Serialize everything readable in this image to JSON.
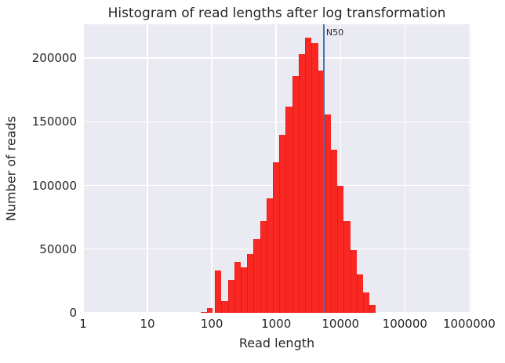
{
  "figure": {
    "title": "Histogram of read lengths after log transformation"
  },
  "chart_data": {
    "type": "bar",
    "variant": "histogram",
    "title": "Histogram of read lengths after log transformation",
    "xlabel": "Read length",
    "ylabel": "Number of reads",
    "x_scale": "log10",
    "xlim_log10": [
      0,
      6.02
    ],
    "ylim": [
      0,
      226500
    ],
    "grid": true,
    "legend": "none",
    "x_ticks": [
      {
        "log10": 0,
        "label": "1"
      },
      {
        "log10": 1,
        "label": "10"
      },
      {
        "log10": 2,
        "label": "100"
      },
      {
        "log10": 3,
        "label": "1000"
      },
      {
        "log10": 4,
        "label": "10000"
      },
      {
        "log10": 5,
        "label": "100000"
      },
      {
        "log10": 6,
        "label": "1000000"
      }
    ],
    "y_ticks": [
      {
        "value": 0,
        "label": "0"
      },
      {
        "value": 50000,
        "label": "50000"
      },
      {
        "value": 100000,
        "label": "100000"
      },
      {
        "value": 150000,
        "label": "150000"
      },
      {
        "value": 200000,
        "label": "200000"
      }
    ],
    "bars_format": "[log10_left_edge, log10_right_edge, number_of_reads]",
    "bars": [
      [
        1.83,
        1.93,
        800
      ],
      [
        1.93,
        2.01,
        4000
      ],
      [
        2.05,
        2.15,
        33000
      ],
      [
        2.15,
        2.25,
        9000
      ],
      [
        2.25,
        2.35,
        26000
      ],
      [
        2.35,
        2.45,
        40000
      ],
      [
        2.45,
        2.55,
        36000
      ],
      [
        2.55,
        2.65,
        46000
      ],
      [
        2.65,
        2.75,
        58000
      ],
      [
        2.75,
        2.85,
        72000
      ],
      [
        2.85,
        2.95,
        90000
      ],
      [
        2.95,
        3.05,
        118000
      ],
      [
        3.05,
        3.15,
        140000
      ],
      [
        3.15,
        3.25,
        162000
      ],
      [
        3.25,
        3.35,
        186000
      ],
      [
        3.35,
        3.45,
        203000
      ],
      [
        3.45,
        3.55,
        216000
      ],
      [
        3.55,
        3.65,
        212000
      ],
      [
        3.65,
        3.75,
        190000
      ],
      [
        3.75,
        3.85,
        156000
      ],
      [
        3.85,
        3.95,
        128000
      ],
      [
        3.95,
        4.05,
        100000
      ],
      [
        4.05,
        4.15,
        72000
      ],
      [
        4.15,
        4.25,
        49000
      ],
      [
        4.25,
        4.35,
        30000
      ],
      [
        4.35,
        4.45,
        16000
      ],
      [
        4.45,
        4.55,
        6000
      ]
    ],
    "annotation_line": {
      "label": "N50",
      "x_log10": 3.74,
      "read_length": 5500
    },
    "colors": {
      "bar": "#fa2823",
      "bar_edge": "#cd1419",
      "n50_line": "#4c72b0",
      "plot_background": "#eaeaf2",
      "gridline": "#ffffff",
      "text": "#262626",
      "figure_background": "#ffffff"
    }
  }
}
